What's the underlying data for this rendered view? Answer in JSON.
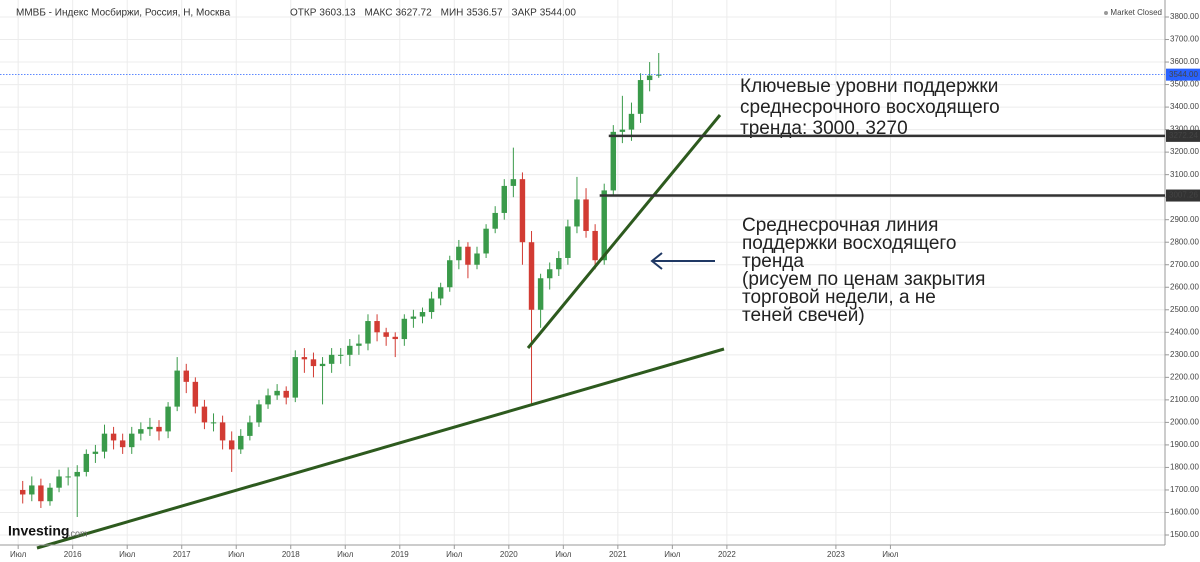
{
  "chart_data": {
    "type": "candlestick",
    "title": "ММВБ - Индекс Мосбиржи, Россия, Н, Москва",
    "quote": [
      {
        "label": "ОТКР",
        "value": "3603.13"
      },
      {
        "label": "МАКС",
        "value": "3627.72"
      },
      {
        "label": "МИН",
        "value": "3536.57"
      },
      {
        "label": "ЗАКР",
        "value": "3544.00"
      }
    ],
    "status": "Market Closed",
    "brand": "Investing",
    "brand_suffix": ".com",
    "x": [
      "2015-07",
      "2015-08",
      "2015-09",
      "2015-10",
      "2015-11",
      "2015-12",
      "2016-01",
      "2016-02",
      "2016-03",
      "2016-04",
      "2016-05",
      "2016-06",
      "2016-07",
      "2016-08",
      "2016-09",
      "2016-10",
      "2016-11",
      "2016-12",
      "2017-01",
      "2017-02",
      "2017-03",
      "2017-04",
      "2017-05",
      "2017-06",
      "2017-07",
      "2017-08",
      "2017-09",
      "2017-10",
      "2017-11",
      "2017-12",
      "2018-01",
      "2018-02",
      "2018-03",
      "2018-04",
      "2018-05",
      "2018-06",
      "2018-07",
      "2018-08",
      "2018-09",
      "2018-10",
      "2018-11",
      "2018-12",
      "2019-01",
      "2019-02",
      "2019-03",
      "2019-04",
      "2019-05",
      "2019-06",
      "2019-07",
      "2019-08",
      "2019-09",
      "2019-10",
      "2019-11",
      "2019-12",
      "2020-01",
      "2020-02",
      "2020-03",
      "2020-04",
      "2020-05",
      "2020-06",
      "2020-07",
      "2020-08",
      "2020-09",
      "2020-10",
      "2020-11",
      "2020-12",
      "2021-01",
      "2021-02",
      "2021-03",
      "2021-04",
      "2021-05"
    ],
    "open": [
      1700,
      1680,
      1720,
      1650,
      1710,
      1760,
      1760,
      1780,
      1860,
      1870,
      1950,
      1920,
      1890,
      1950,
      1970,
      1980,
      1960,
      2070,
      2230,
      2180,
      2070,
      2000,
      2000,
      1920,
      1880,
      1940,
      2000,
      2080,
      2120,
      2140,
      2110,
      2290,
      2280,
      2250,
      2260,
      2300,
      2300,
      2340,
      2350,
      2450,
      2400,
      2380,
      2370,
      2460,
      2470,
      2490,
      2550,
      2600,
      2720,
      2780,
      2700,
      2750,
      2860,
      2930,
      3050,
      3080,
      2800,
      2500,
      2640,
      2680,
      2730,
      2870,
      2990,
      2850,
      2720,
      3030,
      3290,
      3300,
      3370,
      3520,
      3540
    ],
    "high": [
      1740,
      1760,
      1750,
      1730,
      1790,
      1800,
      1810,
      1880,
      1900,
      1990,
      1980,
      1950,
      1980,
      2000,
      2020,
      2010,
      2090,
      2290,
      2260,
      2200,
      2100,
      2040,
      2030,
      1960,
      1970,
      2030,
      2100,
      2150,
      2170,
      2160,
      2320,
      2330,
      2310,
      2290,
      2330,
      2330,
      2370,
      2390,
      2480,
      2480,
      2420,
      2400,
      2480,
      2500,
      2510,
      2580,
      2620,
      2740,
      2810,
      2800,
      2780,
      2880,
      2960,
      3080,
      3220,
      3110,
      2850,
      2660,
      2710,
      2760,
      2900,
      3090,
      3040,
      2880,
      3060,
      3320,
      3450,
      3420,
      3550,
      3600,
      3640
    ],
    "low": [
      1640,
      1650,
      1620,
      1630,
      1690,
      1720,
      1580,
      1760,
      1820,
      1840,
      1880,
      1860,
      1860,
      1920,
      1940,
      1920,
      1930,
      2050,
      2130,
      2040,
      1970,
      1960,
      1880,
      1780,
      1860,
      1920,
      1980,
      2060,
      2100,
      2080,
      2090,
      2220,
      2200,
      2080,
      2220,
      2260,
      2250,
      2300,
      2320,
      2360,
      2340,
      2290,
      2340,
      2420,
      2440,
      2460,
      2520,
      2580,
      2680,
      2640,
      2680,
      2730,
      2840,
      2900,
      3000,
      2700,
      2075,
      2420,
      2590,
      2650,
      2700,
      2840,
      2820,
      2680,
      2700,
      3010,
      3240,
      3250,
      3330,
      3470,
      3530
    ],
    "close": [
      1680,
      1720,
      1650,
      1710,
      1760,
      1760,
      1780,
      1860,
      1870,
      1950,
      1920,
      1890,
      1950,
      1970,
      1980,
      1960,
      2070,
      2230,
      2180,
      2070,
      2000,
      2000,
      1920,
      1880,
      1940,
      2000,
      2080,
      2120,
      2140,
      2110,
      2290,
      2280,
      2250,
      2260,
      2300,
      2300,
      2340,
      2350,
      2450,
      2400,
      2380,
      2370,
      2460,
      2470,
      2490,
      2550,
      2600,
      2720,
      2780,
      2700,
      2750,
      2860,
      2930,
      3050,
      3080,
      2800,
      2500,
      2640,
      2680,
      2730,
      2870,
      2990,
      2850,
      2720,
      3030,
      3290,
      3300,
      3370,
      3520,
      3540,
      3544
    ],
    "up_color": "#3a9a4a",
    "down_color": "#d23b33",
    "xlim": [
      "2015-05",
      "2026-01"
    ],
    "xticks": [
      {
        "value": "2015-07",
        "label": "Июл"
      },
      {
        "value": "2016-01",
        "label": "2016"
      },
      {
        "value": "2016-07",
        "label": "Июл"
      },
      {
        "value": "2017-01",
        "label": "2017"
      },
      {
        "value": "2017-07",
        "label": "Июл"
      },
      {
        "value": "2018-01",
        "label": "2018"
      },
      {
        "value": "2018-07",
        "label": "Июл"
      },
      {
        "value": "2019-01",
        "label": "2019"
      },
      {
        "value": "2019-07",
        "label": "Июл"
      },
      {
        "value": "2020-01",
        "label": "2020"
      },
      {
        "value": "2020-07",
        "label": "Июл"
      },
      {
        "value": "2021-01",
        "label": "2021"
      },
      {
        "value": "2021-07",
        "label": "Июл"
      },
      {
        "value": "2022-01",
        "label": "2022"
      },
      {
        "value": "2023-01",
        "label": "2023"
      },
      {
        "value": "2023-07",
        "label": "Июл"
      }
    ],
    "ylim": [
      1460,
      3840
    ],
    "yticks": [
      {
        "value": 1500,
        "label": "1500.00"
      },
      {
        "value": 1600,
        "label": "1600.00"
      },
      {
        "value": 1700,
        "label": "1700.00"
      },
      {
        "value": 1800,
        "label": "1800.00"
      },
      {
        "value": 1900,
        "label": "1900.00"
      },
      {
        "value": 2000,
        "label": "2000.00"
      },
      {
        "value": 2100,
        "label": "2100.00"
      },
      {
        "value": 2200,
        "label": "2200.00"
      },
      {
        "value": 2300,
        "label": "2300.00"
      },
      {
        "value": 2400,
        "label": "2400.00"
      },
      {
        "value": 2500,
        "label": "2500.00"
      },
      {
        "value": 2600,
        "label": "2600.00"
      },
      {
        "value": 2700,
        "label": "2700.00"
      },
      {
        "value": 2800,
        "label": "2800.00"
      },
      {
        "value": 2900,
        "label": "2900.00"
      },
      {
        "value": 3000,
        "label": "3000.00"
      },
      {
        "value": 3100,
        "label": "3100.00"
      },
      {
        "value": 3200,
        "label": "3200.00"
      },
      {
        "value": 3300,
        "label": "3300.00"
      },
      {
        "value": 3400,
        "label": "3400.00"
      },
      {
        "value": 3500,
        "label": "3500.00"
      },
      {
        "value": 3600,
        "label": "3600.00"
      },
      {
        "value": 3700,
        "label": "3700.00"
      },
      {
        "value": 3800,
        "label": "3800.00"
      }
    ],
    "grid": true,
    "last_price": {
      "value": 3544,
      "label": "3544.00",
      "color": "#2962ff"
    },
    "levels": [
      {
        "value": 3272.24,
        "label": "3272.24",
        "from": "2020-12"
      },
      {
        "value": 3007.26,
        "label": "3007.26",
        "from": "2020-11"
      }
    ],
    "annotations": [
      [
        "Ключевые уровни поддержки",
        "среднесрочного восходящего",
        "тренда: 3000, 3270"
      ],
      [
        "Среднесрочная линия",
        "поддержки восходящего",
        "тренда",
        "(рисуем по ценам закрытия",
        "торговой недели, а не",
        "теней свечей)"
      ]
    ]
  }
}
